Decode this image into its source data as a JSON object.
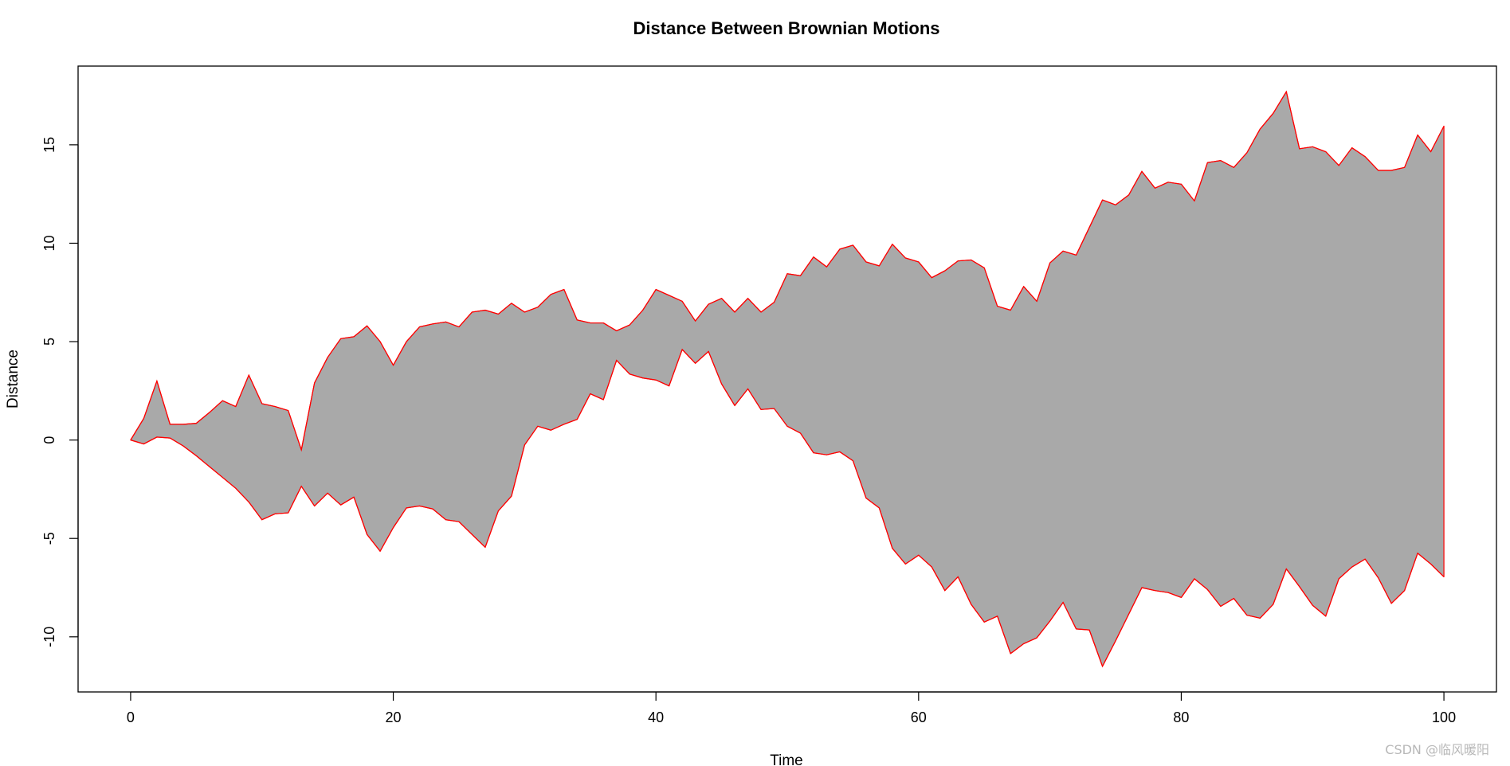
{
  "chart_data": {
    "type": "area",
    "title": "Distance Between Brownian Motions",
    "xlabel": "Time",
    "ylabel": "Distance",
    "xlim": [
      -4,
      104
    ],
    "ylim": [
      -12.8,
      19
    ],
    "x_ticks": [
      0,
      20,
      40,
      60,
      80,
      100
    ],
    "y_ticks": [
      -10,
      -5,
      0,
      5,
      10,
      15
    ],
    "grid": false,
    "legend": "none",
    "fill_color": "#a9a9a9",
    "line_color": "#ff0000",
    "x": [
      0,
      1,
      2,
      3,
      4,
      5,
      6,
      7,
      8,
      9,
      10,
      11,
      12,
      13,
      14,
      15,
      16,
      17,
      18,
      19,
      20,
      21,
      22,
      23,
      24,
      25,
      26,
      27,
      28,
      29,
      30,
      31,
      32,
      33,
      34,
      35,
      36,
      37,
      38,
      39,
      40,
      41,
      42,
      43,
      44,
      45,
      46,
      47,
      48,
      49,
      50,
      51,
      52,
      53,
      54,
      55,
      56,
      57,
      58,
      59,
      60,
      61,
      62,
      63,
      64,
      65,
      66,
      67,
      68,
      69,
      70,
      71,
      72,
      73,
      74,
      75,
      76,
      77,
      78,
      79,
      80,
      81,
      82,
      83,
      84,
      85,
      86,
      87,
      88,
      89,
      90,
      91,
      92,
      93,
      94,
      95,
      96,
      97,
      98,
      99,
      100
    ],
    "series": [
      {
        "values": [
          0,
          1.1,
          3.0,
          0.8,
          0.8,
          0.85,
          1.4,
          2.0,
          1.7,
          3.3,
          1.85,
          1.7,
          1.5,
          -0.5,
          2.9,
          4.2,
          5.15,
          5.25,
          5.8,
          5.0,
          3.8,
          5.0,
          5.75,
          5.9,
          6.0,
          5.75,
          6.5,
          6.6,
          6.4,
          6.95,
          6.5,
          6.75,
          7.4,
          7.65,
          6.1,
          5.95,
          5.95,
          5.55,
          5.85,
          6.6,
          7.65,
          7.35,
          7.05,
          6.05,
          6.9,
          7.2,
          6.5,
          7.2,
          6.5,
          7.0,
          8.45,
          8.35,
          9.3,
          8.8,
          9.7,
          9.9,
          9.05,
          8.85,
          9.95,
          9.25,
          9.05,
          8.25,
          8.6,
          9.1,
          9.15,
          8.75,
          6.8,
          6.6,
          7.8,
          7.05,
          9.0,
          9.6,
          9.4,
          10.8,
          12.2,
          11.95,
          12.45,
          13.65,
          12.8,
          13.1,
          13.0,
          12.15,
          14.1,
          14.2,
          13.85,
          14.6,
          15.8,
          16.6,
          17.7,
          14.8,
          14.9,
          14.65,
          13.95,
          14.85,
          14.4,
          13.7,
          13.7,
          13.85,
          15.5,
          14.65,
          15.95
        ]
      },
      {
        "values": [
          0,
          -0.2,
          0.15,
          0.1,
          -0.3,
          -0.8,
          -1.35,
          -1.9,
          -2.45,
          -3.15,
          -4.05,
          -3.75,
          -3.7,
          -2.35,
          -3.35,
          -2.7,
          -3.3,
          -2.9,
          -4.8,
          -5.65,
          -4.45,
          -3.45,
          -3.35,
          -3.5,
          -4.05,
          -4.15,
          -4.8,
          -5.45,
          -3.6,
          -2.85,
          -0.25,
          0.7,
          0.5,
          0.8,
          1.05,
          2.35,
          2.05,
          4.05,
          3.35,
          3.15,
          3.05,
          2.75,
          4.6,
          3.9,
          4.5,
          2.85,
          1.75,
          2.6,
          1.55,
          1.6,
          0.7,
          0.35,
          -0.65,
          -0.75,
          -0.6,
          -1.05,
          -2.95,
          -3.45,
          -5.5,
          -6.3,
          -5.85,
          -6.45,
          -7.65,
          -6.95,
          -8.35,
          -9.25,
          -8.95,
          -10.85,
          -10.35,
          -10.05,
          -9.2,
          -8.25,
          -9.6,
          -9.65,
          -11.5,
          -10.2,
          -8.85,
          -7.5,
          -7.65,
          -7.75,
          -8.0,
          -7.05,
          -7.6,
          -8.45,
          -8.05,
          -8.9,
          -9.05,
          -8.35,
          -6.55,
          -7.45,
          -8.4,
          -8.95,
          -7.05,
          -6.45,
          -6.05,
          -7.0,
          -8.3,
          -7.65,
          -5.75,
          -6.3,
          -6.95
        ]
      }
    ]
  },
  "watermark": "CSDN @临风暖阳"
}
